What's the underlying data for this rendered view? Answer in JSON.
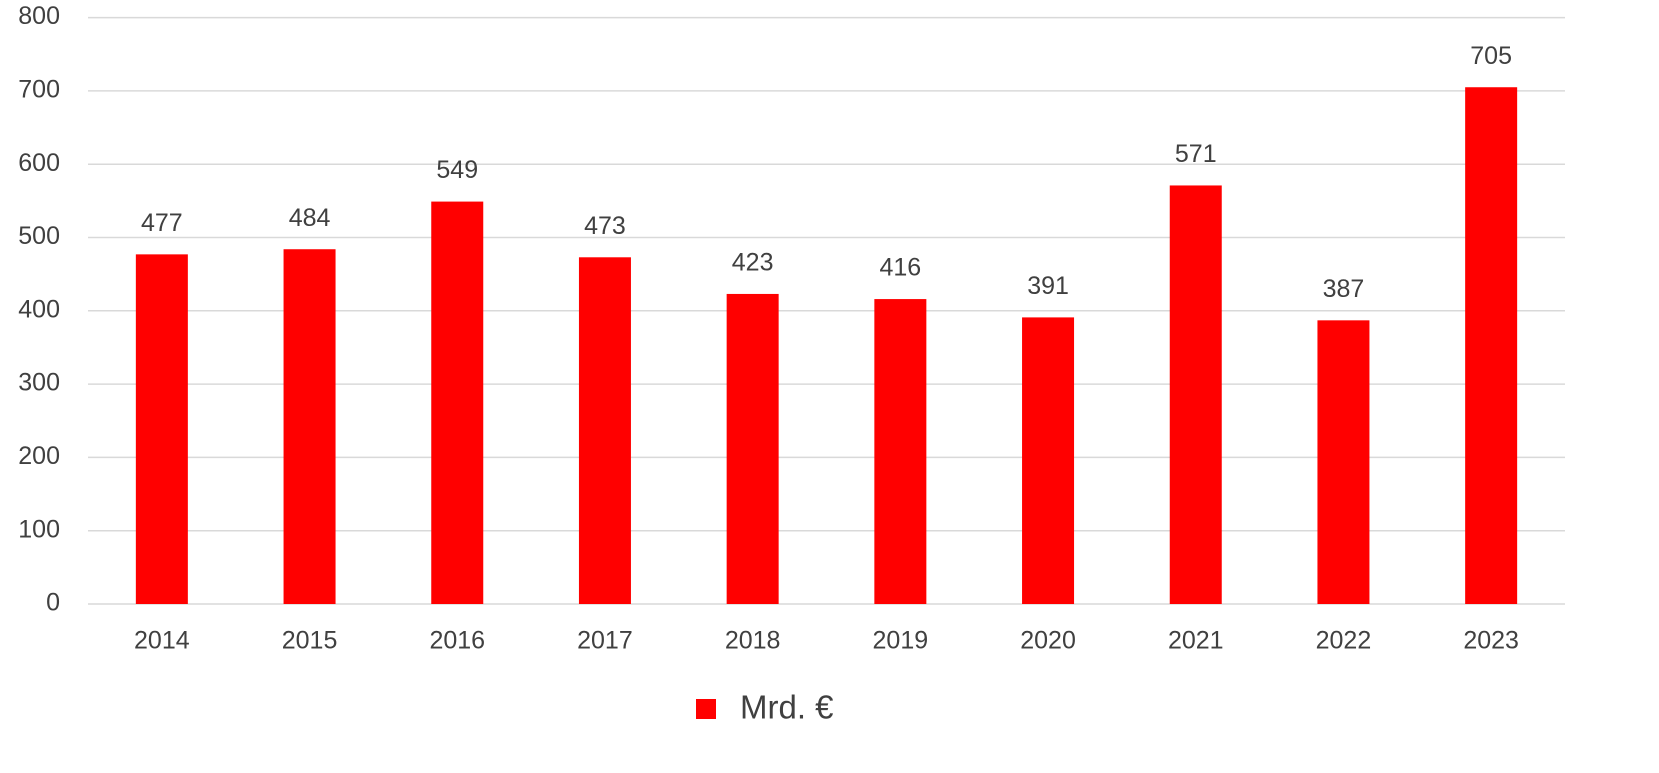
{
  "chart_data": {
    "type": "bar",
    "categories": [
      "2014",
      "2015",
      "2016",
      "2017",
      "2018",
      "2019",
      "2020",
      "2021",
      "2022",
      "2023"
    ],
    "series": [
      {
        "name": "Mrd. €",
        "color": "#ff0000",
        "values": [
          477,
          484,
          549,
          473,
          423,
          416,
          391,
          571,
          387,
          705
        ]
      }
    ],
    "ylim": [
      0,
      800
    ],
    "yticks": [
      0,
      100,
      200,
      300,
      400,
      500,
      600,
      700,
      800
    ],
    "grid": true,
    "legend": "bottom"
  }
}
